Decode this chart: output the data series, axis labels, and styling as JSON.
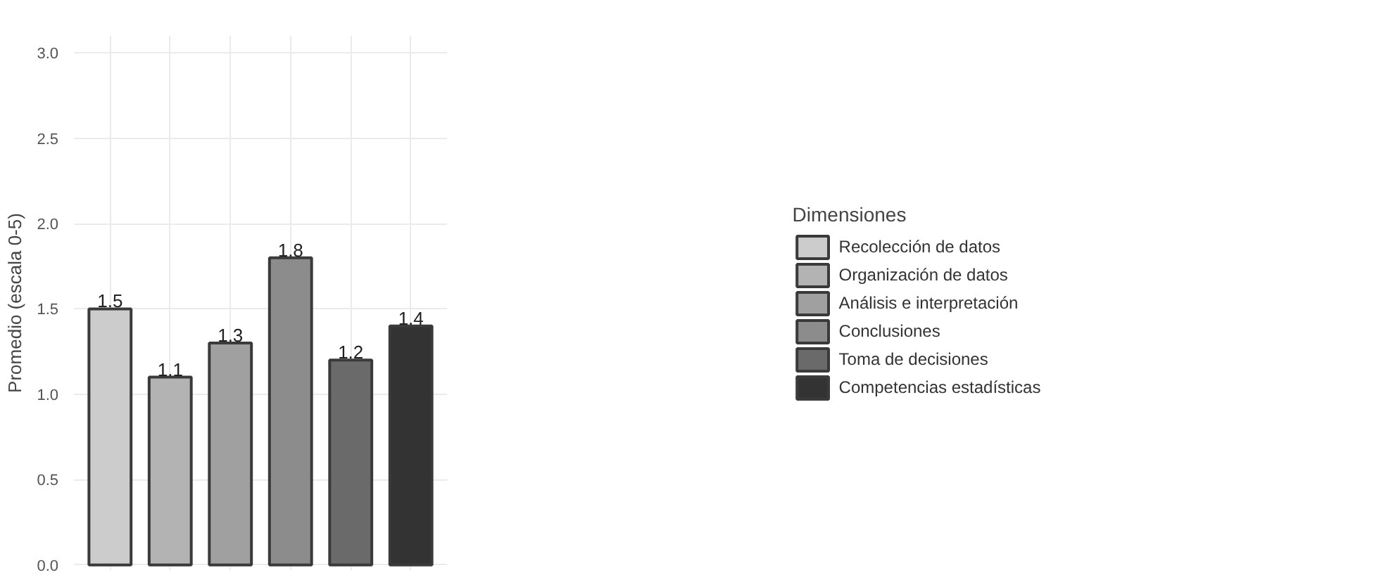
{
  "chart_data": {
    "type": "bar",
    "ylabel": "Promedio (escala 0-5)",
    "legend_title": "Dimensiones",
    "categories": [
      null,
      null,
      null,
      null,
      null,
      null
    ],
    "series": [
      {
        "name": "Recolección de datos",
        "color": "#cccccc",
        "values": [
          1.5,
          null,
          null,
          null,
          null,
          null
        ]
      },
      {
        "name": "Organización de datos",
        "color": "#b3b3b3",
        "values": [
          null,
          1.1,
          null,
          null,
          null,
          null
        ]
      },
      {
        "name": "Análisis e interpretación",
        "color": "#a0a0a0",
        "values": [
          null,
          null,
          1.3,
          null,
          null,
          null
        ]
      },
      {
        "name": "Conclusiones",
        "color": "#8c8c8c",
        "values": [
          null,
          null,
          null,
          1.8,
          null,
          null
        ]
      },
      {
        "name": "Toma de decisiones",
        "color": "#6a6a6a",
        "values": [
          null,
          null,
          null,
          null,
          1.2,
          null
        ]
      },
      {
        "name": "Competencias estadísticas",
        "color": "#333333",
        "values": [
          null,
          null,
          null,
          null,
          null,
          1.4
        ]
      }
    ],
    "ylim": [
      -0.03,
      3.1
    ],
    "yticks": [
      {
        "value": 0,
        "label": "0.0"
      },
      {
        "value": 0.5,
        "label": "0.5"
      },
      {
        "value": 1,
        "label": "1.0"
      },
      {
        "value": 1.5,
        "label": "1.5"
      },
      {
        "value": 2,
        "label": "2.0"
      },
      {
        "value": 2.5,
        "label": "2.5"
      },
      {
        "value": 3,
        "label": "3.0"
      }
    ],
    "tick_labels": "y",
    "grid": true,
    "legend": "right",
    "data_labels": true
  }
}
